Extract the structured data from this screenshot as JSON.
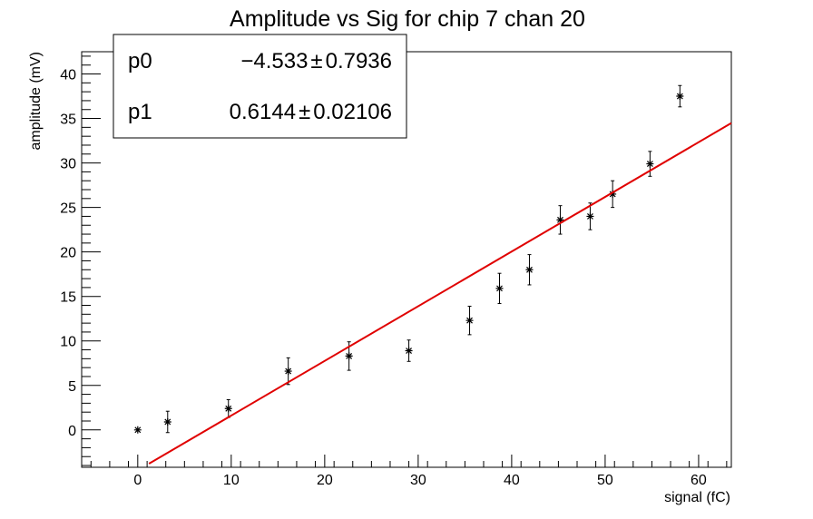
{
  "chart_data": {
    "type": "scatter",
    "title": "Amplitude vs Sig for chip 7 chan 20",
    "xlabel": "signal (fC)",
    "ylabel": "amplitude (mV)",
    "xlim": [
      -6,
      63.5
    ],
    "ylim": [
      -4.2,
      42.5
    ],
    "x_ticks": [
      0,
      10,
      20,
      30,
      40,
      50,
      60
    ],
    "y_ticks": [
      0,
      5,
      10,
      15,
      20,
      25,
      30,
      35,
      40
    ],
    "x_tick_labels": [
      "0",
      "10",
      "20",
      "30",
      "40",
      "50",
      "60"
    ],
    "y_tick_labels": [
      "0",
      "5",
      "10",
      "15",
      "20",
      "25",
      "30",
      "35",
      "40"
    ],
    "points": [
      {
        "x": 0.0,
        "y": 0.0,
        "err": 0.0
      },
      {
        "x": 3.2,
        "y": 0.9,
        "err": 1.2
      },
      {
        "x": 9.7,
        "y": 2.4,
        "err": 1.0
      },
      {
        "x": 16.1,
        "y": 6.6,
        "err": 1.5
      },
      {
        "x": 22.6,
        "y": 8.3,
        "err": 1.6
      },
      {
        "x": 29.0,
        "y": 8.9,
        "err": 1.2
      },
      {
        "x": 35.5,
        "y": 12.3,
        "err": 1.6
      },
      {
        "x": 38.7,
        "y": 15.9,
        "err": 1.7
      },
      {
        "x": 41.9,
        "y": 18.0,
        "err": 1.7
      },
      {
        "x": 45.2,
        "y": 23.6,
        "err": 1.6
      },
      {
        "x": 48.4,
        "y": 24.0,
        "err": 1.5
      },
      {
        "x": 50.8,
        "y": 26.5,
        "err": 1.5
      },
      {
        "x": 54.8,
        "y": 29.9,
        "err": 1.4
      },
      {
        "x": 58.0,
        "y": 37.5,
        "err": 1.2
      }
    ],
    "fit": {
      "x_range": [
        1.2,
        63.5
      ],
      "p0": -4.533,
      "p1": 0.6144,
      "color": "#e00000"
    },
    "stats": [
      {
        "name": "p0",
        "value": "−4.533",
        "pm": "±",
        "error": "0.7936"
      },
      {
        "name": "p1",
        "value": "0.6144",
        "pm": "±",
        "error": "0.02106"
      }
    ],
    "grid": false,
    "marker_color": "#000000"
  }
}
